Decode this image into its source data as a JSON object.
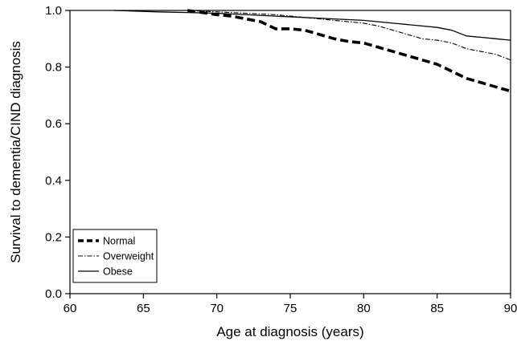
{
  "chart_data": {
    "type": "line",
    "title": "",
    "xlabel": "Age at diagnosis (years)",
    "ylabel": "Survival to dementia/CIND diagnosis",
    "xlim": [
      60,
      90
    ],
    "ylim": [
      0.0,
      1.0
    ],
    "x_ticks": [
      60,
      65,
      70,
      75,
      80,
      85,
      90
    ],
    "x_tick_labels": [
      "60",
      "65",
      "70",
      "75",
      "80",
      "85",
      "90"
    ],
    "y_ticks": [
      0.0,
      0.2,
      0.4,
      0.6,
      0.8,
      1.0
    ],
    "y_tick_labels": [
      "0.0",
      "0.2",
      "0.4",
      "0.6",
      "0.8",
      "1.0"
    ],
    "grid": false,
    "legend_position": "bottom-left",
    "series": [
      {
        "name": "Normal",
        "line_style": "thick-dashed",
        "color": "#000000",
        "x": [
          68,
          70,
          71,
          72,
          73,
          74,
          75,
          76,
          77,
          78,
          79,
          80,
          81,
          82,
          83,
          84,
          85,
          86,
          87,
          88,
          89,
          90
        ],
        "y": [
          1.0,
          0.985,
          0.98,
          0.97,
          0.96,
          0.935,
          0.935,
          0.93,
          0.915,
          0.9,
          0.89,
          0.885,
          0.87,
          0.855,
          0.84,
          0.825,
          0.81,
          0.785,
          0.76,
          0.745,
          0.73,
          0.715
        ]
      },
      {
        "name": "Overweight",
        "line_style": "thin-dash-dot",
        "color": "#000000",
        "x": [
          68,
          70,
          72,
          74,
          76,
          78,
          80,
          81,
          82,
          83,
          84,
          85,
          86,
          87,
          88,
          89,
          90
        ],
        "y": [
          1.0,
          0.995,
          0.99,
          0.985,
          0.975,
          0.965,
          0.955,
          0.945,
          0.93,
          0.915,
          0.9,
          0.895,
          0.885,
          0.865,
          0.855,
          0.845,
          0.825
        ]
      },
      {
        "name": "Obese",
        "line_style": "solid",
        "color": "#000000",
        "x": [
          63,
          66,
          70,
          74,
          76,
          78,
          80,
          82,
          84,
          85,
          86,
          87,
          88,
          89,
          90
        ],
        "y": [
          1.0,
          0.995,
          0.99,
          0.98,
          0.975,
          0.97,
          0.965,
          0.955,
          0.945,
          0.94,
          0.93,
          0.91,
          0.905,
          0.9,
          0.895
        ]
      }
    ]
  }
}
